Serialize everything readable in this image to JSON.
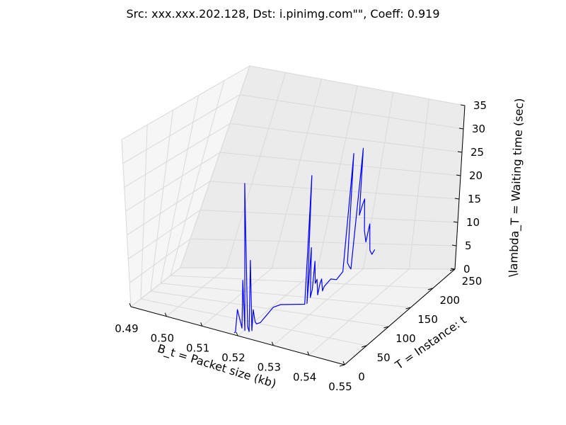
{
  "chart_data": {
    "type": "line",
    "projection": "3d",
    "title": "Src: xxx.xxx.202.128, Dst: i.pinimg.com\"\", Coeff: 0.919",
    "xlabel": "B_t = Packet size (kb)",
    "ylabel": "T = Instance: t",
    "zlabel": "\\lambda_T = Waiting time (sec)",
    "xlim": [
      0.49,
      0.55
    ],
    "ylim": [
      0,
      250
    ],
    "zlim": [
      0,
      35
    ],
    "x_ticks": [
      "0.49",
      "0.50",
      "0.51",
      "0.52",
      "0.53",
      "0.54",
      "0.55"
    ],
    "y_ticks": [
      "0",
      "50",
      "100",
      "150",
      "200",
      "250"
    ],
    "z_ticks": [
      "0",
      "5",
      "10",
      "15",
      "20",
      "25",
      "30",
      "35"
    ],
    "grid": true,
    "line_color": "#0000ff",
    "series": [
      {
        "points": [
          [
            0.5189,
            1,
            0.3
          ],
          [
            0.5192,
            2,
            0.5
          ],
          [
            0.5197,
            4,
            5.0
          ],
          [
            0.5205,
            8,
            1.2
          ],
          [
            0.5208,
            9,
            10.8
          ],
          [
            0.5211,
            10,
            0.7
          ],
          [
            0.5214,
            11,
            30.2
          ],
          [
            0.5217,
            12,
            1.5
          ],
          [
            0.522,
            13,
            0.5
          ],
          [
            0.5223,
            15,
            14.7
          ],
          [
            0.5225,
            16,
            0.6
          ],
          [
            0.5228,
            17,
            4.8
          ],
          [
            0.5231,
            19,
            2.4
          ],
          [
            0.5234,
            20,
            1.9
          ],
          [
            0.524,
            25,
            2.0
          ],
          [
            0.526,
            40,
            4.5
          ],
          [
            0.527,
            50,
            4.6
          ],
          [
            0.53,
            85,
            3.0
          ],
          [
            0.5301,
            86,
            28.5
          ],
          [
            0.5303,
            88,
            3.0
          ],
          [
            0.5305,
            90,
            14.0
          ],
          [
            0.5307,
            92,
            4.0
          ],
          [
            0.5309,
            94,
            5.5
          ],
          [
            0.531,
            96,
            11.0
          ],
          [
            0.5312,
            98,
            6.5
          ],
          [
            0.5314,
            100,
            7.2
          ],
          [
            0.5316,
            102,
            4.0
          ],
          [
            0.5318,
            104,
            6.0
          ],
          [
            0.532,
            106,
            7.0
          ],
          [
            0.5322,
            108,
            4.5
          ],
          [
            0.5324,
            110,
            5.3
          ],
          [
            0.533,
            120,
            6.2
          ],
          [
            0.5335,
            130,
            5.5
          ],
          [
            0.534,
            140,
            6.5
          ],
          [
            0.5342,
            142,
            30.0
          ],
          [
            0.5345,
            145,
            8.0
          ],
          [
            0.5348,
            148,
            7.0
          ],
          [
            0.535,
            150,
            6.5
          ],
          [
            0.5353,
            153,
            30.5
          ],
          [
            0.5355,
            155,
            17.0
          ],
          [
            0.5358,
            158,
            19.0
          ],
          [
            0.536,
            160,
            20.0
          ],
          [
            0.5363,
            163,
            13.5
          ],
          [
            0.5366,
            166,
            11.0
          ],
          [
            0.5369,
            169,
            14.5
          ],
          [
            0.5372,
            172,
            9.0
          ],
          [
            0.5375,
            175,
            8.0
          ],
          [
            0.5378,
            178,
            8.8
          ]
        ]
      }
    ]
  }
}
